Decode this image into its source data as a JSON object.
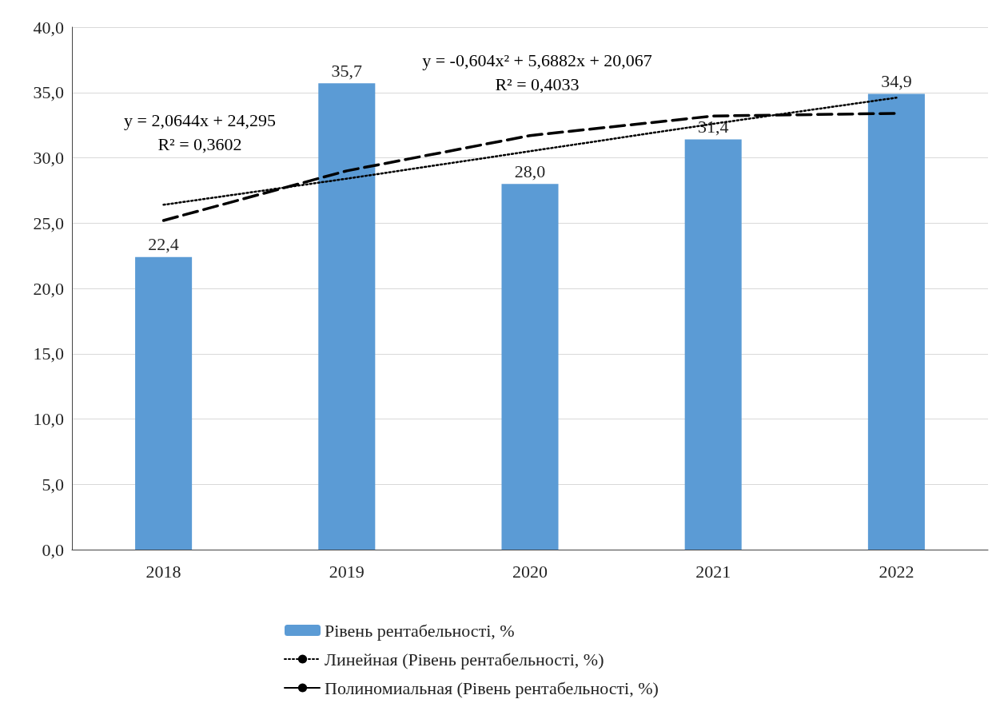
{
  "chart_data": {
    "type": "bar",
    "categories": [
      "2018",
      "2019",
      "2020",
      "2021",
      "2022"
    ],
    "series": [
      {
        "name": "Рівень рентабельності, %",
        "color": "#5b9bd5",
        "values": [
          22.4,
          35.7,
          28.0,
          31.4,
          34.9
        ],
        "value_labels": [
          "22,4",
          "35,7",
          "28,0",
          "31,4",
          "34,9"
        ]
      },
      {
        "name": "Линейная (Рівень рентабельності, %)",
        "type": "line",
        "color": "#000000",
        "line_style": "dotted",
        "marker": "none",
        "values": [
          26.4,
          28.4,
          30.5,
          32.6,
          34.6
        ]
      },
      {
        "name": "Полиномиальная (Рівень рентабельності, %)",
        "type": "line",
        "color": "#000000",
        "line_style": "dashed",
        "marker": "none",
        "values": [
          25.2,
          29.0,
          31.7,
          33.2,
          33.4
        ]
      }
    ],
    "annotations": [
      "y = 2,0644x + 24,295\nR² = 0,3602",
      "y = -0,604x² + 5,6882x + 20,067\nR² = 0,4033"
    ],
    "ylim": [
      0,
      40
    ],
    "yticks": [
      {
        "value": 0,
        "label": "0,0"
      },
      {
        "value": 5,
        "label": "5,0"
      },
      {
        "value": 10,
        "label": "10,0"
      },
      {
        "value": 15,
        "label": "15,0"
      },
      {
        "value": 20,
        "label": "20,0"
      },
      {
        "value": 25,
        "label": "25,0"
      },
      {
        "value": 30,
        "label": "30,0"
      },
      {
        "value": 35,
        "label": "35,0"
      },
      {
        "value": 40,
        "label": "40,0"
      }
    ],
    "grid": "y",
    "legend": "bottom"
  }
}
